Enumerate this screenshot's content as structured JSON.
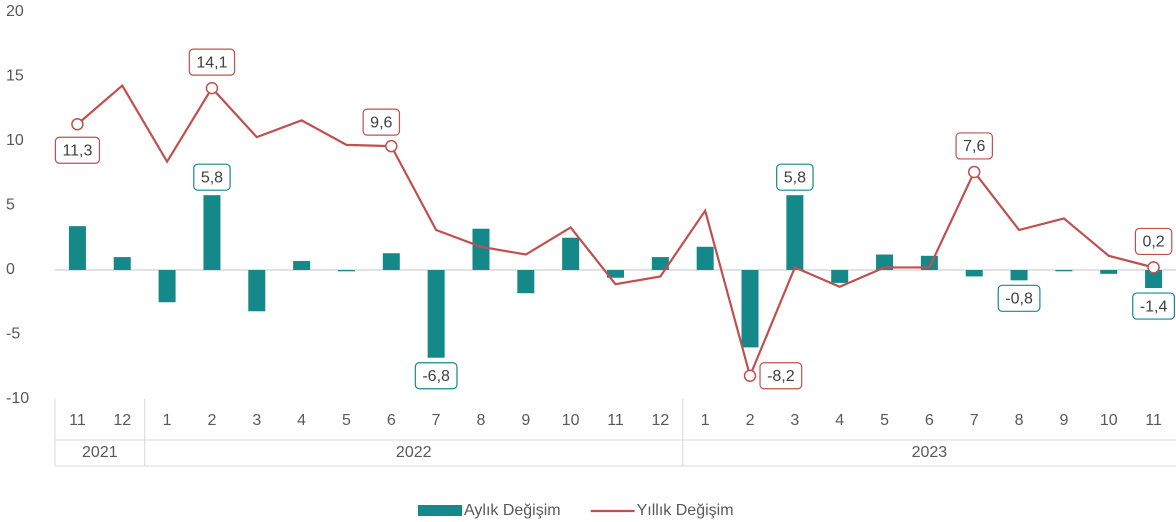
{
  "chart_data": {
    "type": "combo",
    "categories": [
      "11",
      "12",
      "1",
      "2",
      "3",
      "4",
      "5",
      "6",
      "7",
      "8",
      "9",
      "10",
      "11",
      "12",
      "1",
      "2",
      "3",
      "4",
      "5",
      "6",
      "7",
      "8",
      "9",
      "10",
      "11"
    ],
    "category_groups": [
      {
        "label": "2021",
        "size": 2
      },
      {
        "label": "2022",
        "size": 12
      },
      {
        "label": "2023",
        "size": 11
      }
    ],
    "ylim": [
      -10,
      20
    ],
    "yticks": [
      -10,
      -5,
      0,
      5,
      10,
      15,
      20
    ],
    "series": [
      {
        "name": "Aylık Değişim",
        "type": "bar",
        "color": "#15898a",
        "values": [
          3.4,
          1.0,
          -2.5,
          5.8,
          -3.2,
          0.7,
          -0.1,
          1.3,
          -6.8,
          3.2,
          -1.8,
          2.5,
          -0.6,
          1.0,
          1.8,
          -6.0,
          5.8,
          -1.0,
          1.2,
          1.1,
          -0.5,
          -0.8,
          -0.1,
          -0.3,
          -1.4
        ],
        "value_labels": [
          null,
          null,
          null,
          "5,8",
          null,
          null,
          null,
          null,
          "-6,8",
          null,
          null,
          null,
          null,
          null,
          null,
          null,
          "5,8",
          null,
          null,
          null,
          null,
          "-0,8",
          null,
          null,
          "-1,4"
        ]
      },
      {
        "name": "Yıllık Değişim",
        "type": "line",
        "color": "#c0504d",
        "values": [
          11.3,
          14.3,
          8.4,
          14.1,
          10.3,
          11.6,
          9.7,
          9.6,
          3.1,
          1.8,
          1.2,
          3.3,
          -1.1,
          -0.5,
          4.6,
          -8.2,
          0.2,
          -1.3,
          0.2,
          0.2,
          7.6,
          3.1,
          4.0,
          1.1,
          0.2
        ],
        "value_labels": [
          "11,3",
          null,
          null,
          "14,1",
          null,
          null,
          null,
          "9,6",
          null,
          null,
          null,
          null,
          null,
          null,
          null,
          "-8,2",
          null,
          null,
          null,
          null,
          "7,6",
          null,
          null,
          null,
          "0,2"
        ]
      }
    ]
  }
}
